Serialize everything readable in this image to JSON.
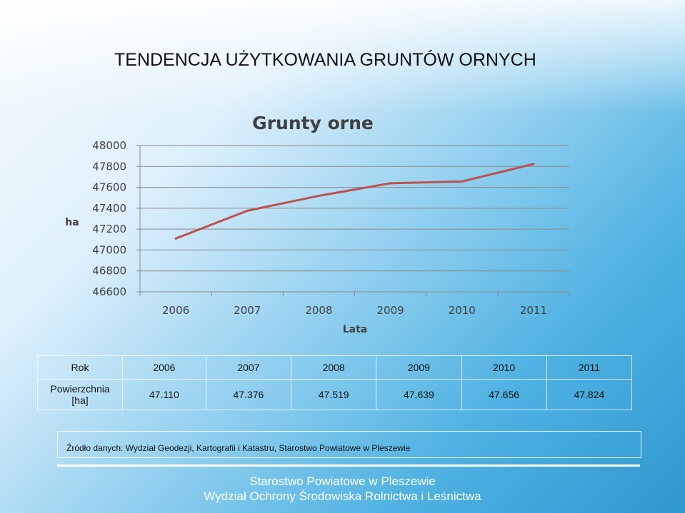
{
  "slide": {
    "title": "TENDENCJA UŻYTKOWANIA GRUNTÓW ORNYCH",
    "source": "Źródło danych: Wydział Geodezji, Kartografii i Katastru, Starostwo Powiatowe w Pleszewie",
    "footer_line1": "Starostwo Powiatowe w Pleszewie",
    "footer_line2": "Wydział Ochrony Środowiska Rolnictwa i Leśnictwa"
  },
  "chart_data": {
    "type": "line",
    "title": "Grunty orne",
    "xlabel": "Lata",
    "ylabel": "ha",
    "categories": [
      "2006",
      "2007",
      "2008",
      "2009",
      "2010",
      "2011"
    ],
    "series": [
      {
        "values": [
          47110,
          47376,
          47519,
          47639,
          47656,
          47824
        ]
      }
    ],
    "ylim": [
      46600,
      48000
    ],
    "yticks": [
      46600,
      46800,
      47000,
      47200,
      47400,
      47600,
      47800,
      48000
    ],
    "grid": true,
    "line_color": "#c0504d"
  },
  "table": {
    "row1_header": "Rok",
    "row2_header": "Powierzchnia [ha]",
    "years": [
      "2006",
      "2007",
      "2008",
      "2009",
      "2010",
      "2011"
    ],
    "values": [
      "47.110",
      "47.376",
      "47.519",
      "47.639",
      "47.656",
      "47.824"
    ]
  }
}
